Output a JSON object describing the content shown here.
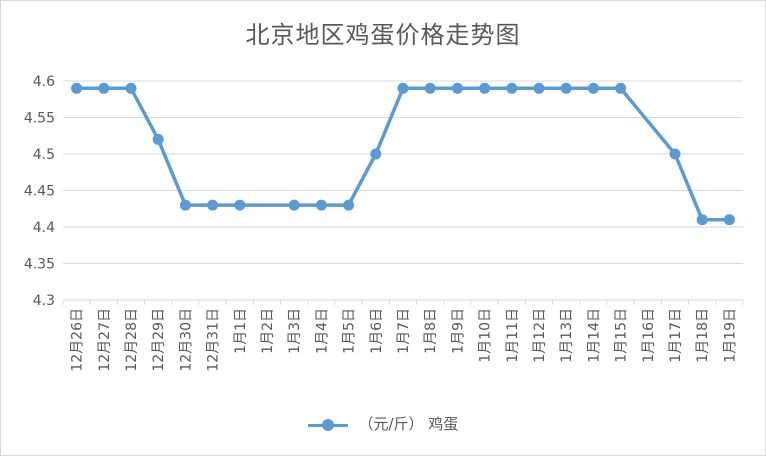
{
  "chart_data": {
    "type": "line",
    "title": "北京地区鸡蛋价格走势图",
    "categories": [
      "12月26日",
      "12月27日",
      "12月28日",
      "12月29日",
      "12月30日",
      "12月31日",
      "1月1日",
      "1月2日",
      "1月3日",
      "1月4日",
      "1月5日",
      "1月6日",
      "1月7日",
      "1月8日",
      "1月9日",
      "1月10日",
      "1月11日",
      "1月12日",
      "1月13日",
      "1月14日",
      "1月15日",
      "1月16日",
      "1月17日",
      "1月18日",
      "1月19日"
    ],
    "series": [
      {
        "name": "（元/斤） 鸡蛋",
        "values": [
          4.59,
          4.59,
          4.59,
          4.52,
          4.43,
          4.43,
          4.43,
          null,
          4.43,
          4.43,
          4.43,
          4.5,
          4.59,
          4.59,
          4.59,
          4.59,
          4.59,
          4.59,
          4.59,
          4.59,
          4.59,
          null,
          4.5,
          4.41,
          4.41
        ],
        "color": "#5b9bd5"
      }
    ],
    "ylim": [
      4.3,
      4.6
    ],
    "yticks": [
      "4.3",
      "4.35",
      "4.4",
      "4.45",
      "4.5",
      "4.55",
      "4.6"
    ],
    "grid": true,
    "legend": "bottom"
  }
}
